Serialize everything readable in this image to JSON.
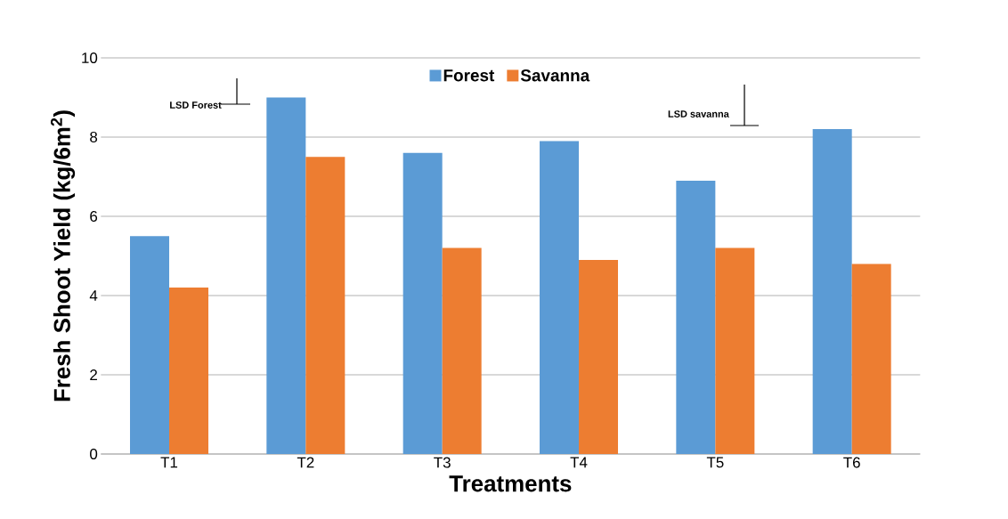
{
  "chart_data": {
    "type": "bar",
    "xlabel": "Treatments",
    "ylabel": "Fresh Shoot Yield (kg/6m$^{2}$)",
    "categories": [
      "T1",
      "T2",
      "T3",
      "T4",
      "T5",
      "T6"
    ],
    "series": [
      {
        "name": "Forest",
        "color": "#5b9bd5",
        "values": [
          5.5,
          9.0,
          7.6,
          7.9,
          6.9,
          8.2
        ]
      },
      {
        "name": "Savanna",
        "color": "#ed7d31",
        "values": [
          4.2,
          7.5,
          5.2,
          4.9,
          5.2,
          4.8
        ]
      }
    ],
    "ylim": [
      0,
      10
    ],
    "yticks": [
      0,
      2,
      4,
      6,
      8,
      10
    ],
    "grid": "y",
    "legend": "top",
    "annotations": [
      "LSD Forest",
      "LSD savanna"
    ]
  }
}
